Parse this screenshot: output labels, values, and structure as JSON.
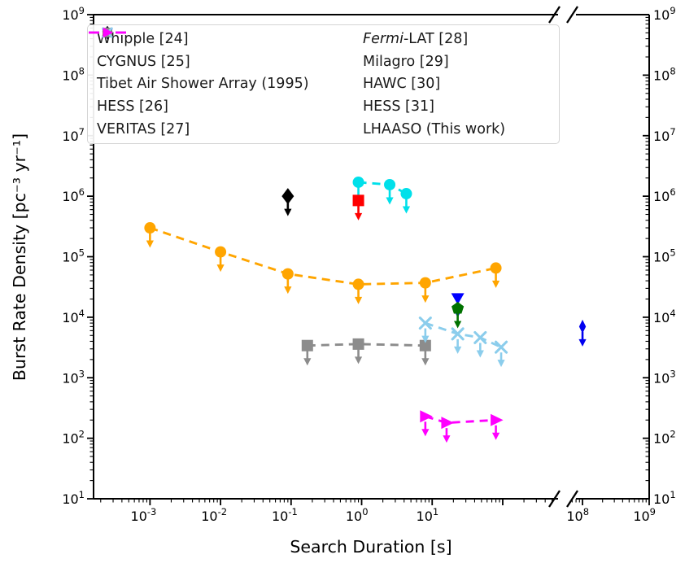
{
  "figure": {
    "background": "#ffffff"
  },
  "chart_data": {
    "type": "scatter",
    "title": "",
    "xlabel": "Search Duration [s]",
    "ylabel": "Burst Rate Density [pc⁻³ yr⁻¹]",
    "x_scale": "log",
    "y_scale": "log",
    "x_axis_break": {
      "between_values": [
        560,
        63000000
      ],
      "note": "double slash break marks on top and bottom spines"
    },
    "x_range": [
      0.00016,
      1000000000.0
    ],
    "y_range": [
      10,
      1000000000.0
    ],
    "grid": false,
    "legend_position": "upper left, two columns, inside axes",
    "x_ticks": [
      {
        "v": 0.001,
        "label": "10^-3"
      },
      {
        "v": 0.01,
        "label": "10^-2"
      },
      {
        "v": 0.1,
        "label": "10^-1"
      },
      {
        "v": 1,
        "label": "10^0"
      },
      {
        "v": 10,
        "label": "10^1"
      },
      {
        "v": 100,
        "label": ""
      },
      {
        "v": 100000000.0,
        "label": "10^8"
      },
      {
        "v": 1000000000.0,
        "label": "10^9"
      }
    ],
    "y_ticks": [
      {
        "v": 1000000000.0,
        "label": "10^9"
      },
      {
        "v": 100000000.0,
        "label": "10^8"
      },
      {
        "v": 10000000.0,
        "label": "10^7"
      },
      {
        "v": 1000000.0,
        "label": "10^6"
      },
      {
        "v": 100000.0,
        "label": "10^5"
      },
      {
        "v": 10000.0,
        "label": "10^4"
      },
      {
        "v": 1000.0,
        "label": "10^3"
      },
      {
        "v": 100.0,
        "label": "10^2"
      },
      {
        "v": 10.0,
        "label": "10^1"
      }
    ],
    "upper_limits": "every data point has a downward arrow (flux upper limit)",
    "series": [
      {
        "name": "Whipple [24]",
        "color": "#00e0ea",
        "marker": "circle",
        "linestyle": "dashed",
        "points": [
          [
            0.9,
            1700000.0
          ],
          [
            2.5,
            1550000.0
          ],
          [
            4.3,
            1100000.0
          ]
        ]
      },
      {
        "name": "CYGNUS [25]",
        "color": "#ff0000",
        "marker": "square",
        "linestyle": "dashed",
        "points": [
          [
            0.9,
            850000.0
          ]
        ]
      },
      {
        "name": "Tibet Air Shower Array (1995)",
        "color": "#000000",
        "marker": "diamond",
        "linestyle": "dashed",
        "points": [
          [
            0.09,
            1000000.0
          ]
        ]
      },
      {
        "name": "HESS [26]",
        "color": "#007200",
        "marker": "pentagon",
        "linestyle": "dashed",
        "points": [
          [
            23,
            14000.0
          ]
        ]
      },
      {
        "name": "VERITAS [27]",
        "color": "#0000ff",
        "marker": "triangle-down",
        "linestyle": "dashed",
        "points": [
          [
            23,
            21000.0
          ]
        ]
      },
      {
        "name": "Fermi-LAT [28]",
        "italic_part": "Fermi",
        "color": "#0000f0",
        "marker": "thin-diamond",
        "linestyle": "dashed",
        "points": [
          [
            100000000.0,
            7000.0
          ]
        ]
      },
      {
        "name": "Milagro [29]",
        "color": "#ffa500",
        "marker": "circle",
        "linestyle": "dashed",
        "points": [
          [
            0.001,
            300000.0
          ],
          [
            0.01,
            120000.0
          ],
          [
            0.09,
            52000.0
          ],
          [
            0.9,
            35000.0
          ],
          [
            8,
            37000.0
          ],
          [
            80,
            65000.0
          ]
        ]
      },
      {
        "name": "HAWC [30]",
        "color": "#8c8c8c",
        "marker": "square",
        "linestyle": "dashed",
        "points": [
          [
            0.17,
            3400.0
          ],
          [
            0.9,
            3600.0
          ],
          [
            8,
            3400.0
          ]
        ]
      },
      {
        "name": "HESS [31]",
        "color": "#8bcdec",
        "marker": "x",
        "linestyle": "dashed",
        "points": [
          [
            8,
            8000.0
          ],
          [
            23,
            5300.0
          ],
          [
            48,
            4600.0
          ],
          [
            95,
            3200.0
          ]
        ]
      },
      {
        "name": "LHAASO (This work)",
        "color": "#ff00ff",
        "marker": "triangle-right",
        "linestyle": "dashed",
        "points": [
          [
            8,
            230.0
          ],
          [
            16,
            180.0
          ],
          [
            80,
            200.0
          ]
        ]
      }
    ]
  }
}
